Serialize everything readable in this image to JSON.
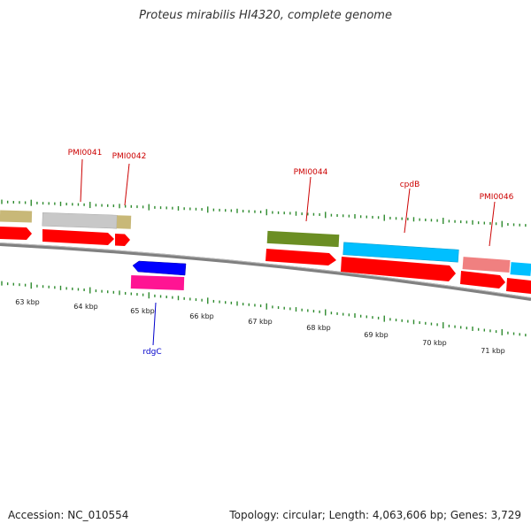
{
  "header": {
    "title": "Proteus mirabilis HI4320, complete genome"
  },
  "footer": {
    "accession": "Accession: NC_010554",
    "stats": "Topology: circular; Length: 4,063,606 bp; Genes: 3,729"
  },
  "genes_forward": [
    {
      "name": "PMI0041",
      "color": "#c0c0c0",
      "cds_color": "#ff0000",
      "tip_color": "#c8b878"
    },
    {
      "name": "PMI0042",
      "color": "#ff0000"
    },
    {
      "name": "PMI0044",
      "color": "#6b8e23",
      "cds_color": "#ff0000"
    },
    {
      "name": "cpdB",
      "color": "#00bfff",
      "cds_color": "#ff0000"
    },
    {
      "name": "PMI0046",
      "color": "#f08080",
      "cds_color": "#ff0000"
    }
  ],
  "genes_reverse": [
    {
      "name": "rdgC",
      "color": "#0000ff",
      "cds_color": "#ff1493"
    }
  ],
  "scale_labels": [
    "63 kbp",
    "64 kbp",
    "65 kbp",
    "66 kbp",
    "67 kbp",
    "68 kbp",
    "69 kbp",
    "70 kbp",
    "71 kbp"
  ],
  "colors": {
    "gene_label": "#cc0000",
    "reverse_label": "#0000cc",
    "tick": "#2e8b2e",
    "backbone": "#808080"
  }
}
